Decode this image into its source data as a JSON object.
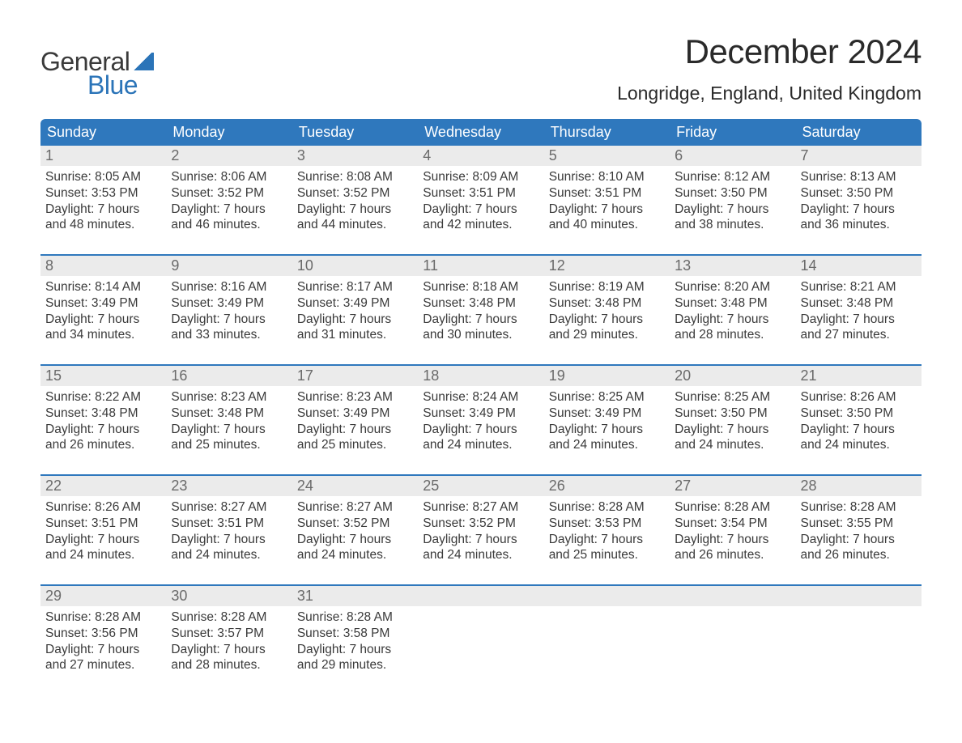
{
  "brand": {
    "general": "General",
    "blue": "Blue"
  },
  "title": "December 2024",
  "location": "Longridge, England, United Kingdom",
  "colors": {
    "header_bg": "#2f78bd",
    "header_text": "#ffffff",
    "daynum_bg": "#ebebeb",
    "daynum_text": "#6a6a6a",
    "body_text": "#3a3a3a",
    "week_divider": "#2f78bd",
    "brand_blue": "#2b74b8",
    "page_bg": "#ffffff"
  },
  "typography": {
    "title_fontsize": 42,
    "location_fontsize": 23,
    "weekday_fontsize": 18,
    "daynum_fontsize": 18,
    "body_fontsize": 15.5
  },
  "weekdays": [
    "Sunday",
    "Monday",
    "Tuesday",
    "Wednesday",
    "Thursday",
    "Friday",
    "Saturday"
  ],
  "weeks": [
    [
      {
        "n": "1",
        "sr": "8:05 AM",
        "ss": "3:53 PM",
        "dh": "7",
        "dm": "48"
      },
      {
        "n": "2",
        "sr": "8:06 AM",
        "ss": "3:52 PM",
        "dh": "7",
        "dm": "46"
      },
      {
        "n": "3",
        "sr": "8:08 AM",
        "ss": "3:52 PM",
        "dh": "7",
        "dm": "44"
      },
      {
        "n": "4",
        "sr": "8:09 AM",
        "ss": "3:51 PM",
        "dh": "7",
        "dm": "42"
      },
      {
        "n": "5",
        "sr": "8:10 AM",
        "ss": "3:51 PM",
        "dh": "7",
        "dm": "40"
      },
      {
        "n": "6",
        "sr": "8:12 AM",
        "ss": "3:50 PM",
        "dh": "7",
        "dm": "38"
      },
      {
        "n": "7",
        "sr": "8:13 AM",
        "ss": "3:50 PM",
        "dh": "7",
        "dm": "36"
      }
    ],
    [
      {
        "n": "8",
        "sr": "8:14 AM",
        "ss": "3:49 PM",
        "dh": "7",
        "dm": "34"
      },
      {
        "n": "9",
        "sr": "8:16 AM",
        "ss": "3:49 PM",
        "dh": "7",
        "dm": "33"
      },
      {
        "n": "10",
        "sr": "8:17 AM",
        "ss": "3:49 PM",
        "dh": "7",
        "dm": "31"
      },
      {
        "n": "11",
        "sr": "8:18 AM",
        "ss": "3:48 PM",
        "dh": "7",
        "dm": "30"
      },
      {
        "n": "12",
        "sr": "8:19 AM",
        "ss": "3:48 PM",
        "dh": "7",
        "dm": "29"
      },
      {
        "n": "13",
        "sr": "8:20 AM",
        "ss": "3:48 PM",
        "dh": "7",
        "dm": "28"
      },
      {
        "n": "14",
        "sr": "8:21 AM",
        "ss": "3:48 PM",
        "dh": "7",
        "dm": "27"
      }
    ],
    [
      {
        "n": "15",
        "sr": "8:22 AM",
        "ss": "3:48 PM",
        "dh": "7",
        "dm": "26"
      },
      {
        "n": "16",
        "sr": "8:23 AM",
        "ss": "3:48 PM",
        "dh": "7",
        "dm": "25"
      },
      {
        "n": "17",
        "sr": "8:23 AM",
        "ss": "3:49 PM",
        "dh": "7",
        "dm": "25"
      },
      {
        "n": "18",
        "sr": "8:24 AM",
        "ss": "3:49 PM",
        "dh": "7",
        "dm": "24"
      },
      {
        "n": "19",
        "sr": "8:25 AM",
        "ss": "3:49 PM",
        "dh": "7",
        "dm": "24"
      },
      {
        "n": "20",
        "sr": "8:25 AM",
        "ss": "3:50 PM",
        "dh": "7",
        "dm": "24"
      },
      {
        "n": "21",
        "sr": "8:26 AM",
        "ss": "3:50 PM",
        "dh": "7",
        "dm": "24"
      }
    ],
    [
      {
        "n": "22",
        "sr": "8:26 AM",
        "ss": "3:51 PM",
        "dh": "7",
        "dm": "24"
      },
      {
        "n": "23",
        "sr": "8:27 AM",
        "ss": "3:51 PM",
        "dh": "7",
        "dm": "24"
      },
      {
        "n": "24",
        "sr": "8:27 AM",
        "ss": "3:52 PM",
        "dh": "7",
        "dm": "24"
      },
      {
        "n": "25",
        "sr": "8:27 AM",
        "ss": "3:52 PM",
        "dh": "7",
        "dm": "24"
      },
      {
        "n": "26",
        "sr": "8:28 AM",
        "ss": "3:53 PM",
        "dh": "7",
        "dm": "25"
      },
      {
        "n": "27",
        "sr": "8:28 AM",
        "ss": "3:54 PM",
        "dh": "7",
        "dm": "26"
      },
      {
        "n": "28",
        "sr": "8:28 AM",
        "ss": "3:55 PM",
        "dh": "7",
        "dm": "26"
      }
    ],
    [
      {
        "n": "29",
        "sr": "8:28 AM",
        "ss": "3:56 PM",
        "dh": "7",
        "dm": "27"
      },
      {
        "n": "30",
        "sr": "8:28 AM",
        "ss": "3:57 PM",
        "dh": "7",
        "dm": "28"
      },
      {
        "n": "31",
        "sr": "8:28 AM",
        "ss": "3:58 PM",
        "dh": "7",
        "dm": "29"
      },
      null,
      null,
      null,
      null
    ]
  ],
  "labels": {
    "sunrise": "Sunrise:",
    "sunset": "Sunset:",
    "daylight": "Daylight:",
    "hours": "hours",
    "and": "and",
    "minutes": "minutes."
  }
}
